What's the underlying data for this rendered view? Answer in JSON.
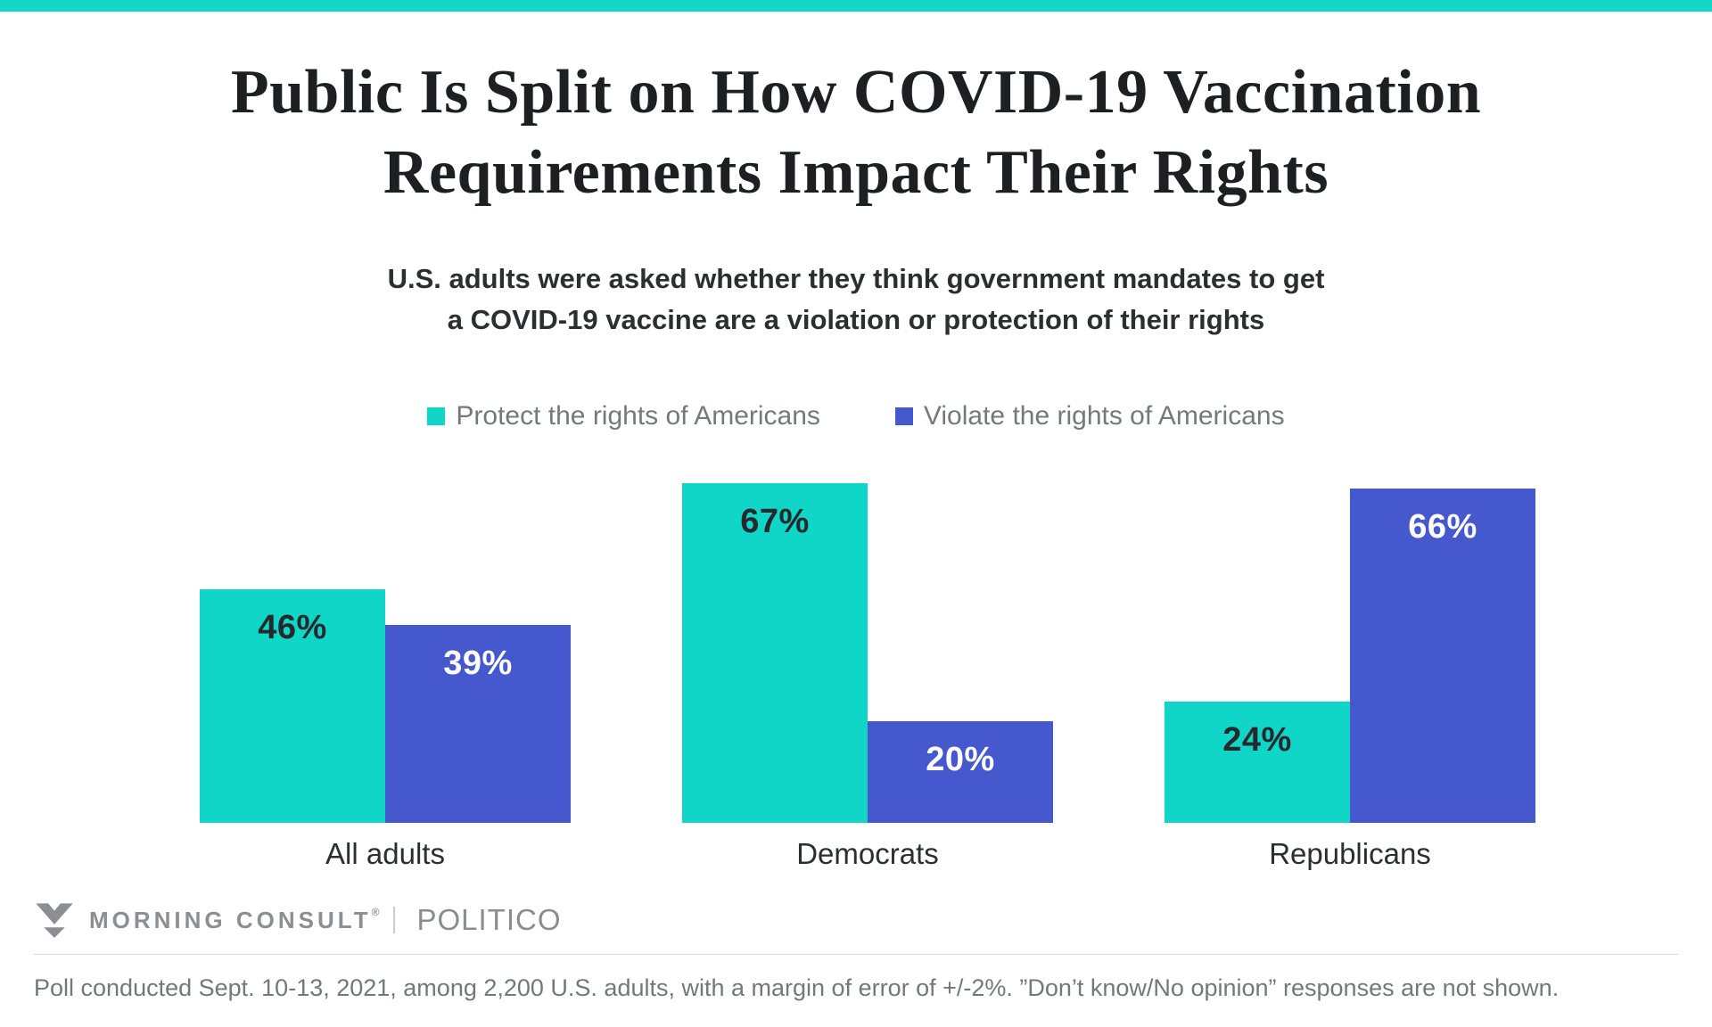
{
  "accent_color": "#12d6c6",
  "header": {
    "title_line1": "Public Is Split on How COVID-19 Vaccination",
    "title_line2": "Requirements Impact Their Rights",
    "subtitle_line1": "U.S. adults were asked whether they think government mandates to get",
    "subtitle_line2": "a COVID-19 vaccine are a violation or protection of their rights"
  },
  "legend": {
    "items": [
      {
        "label": "Protect the rights of Americans",
        "color": "#10d6c8"
      },
      {
        "label": "Violate the rights of Americans",
        "color": "#4658cd"
      }
    ]
  },
  "chart_data": {
    "type": "bar",
    "title": "Public Is Split on How COVID-19 Vaccination Requirements Impact Their Rights",
    "subtitle": "U.S. adults were asked whether they think government mandates to get a COVID-19 vaccine are a violation or protection of their rights",
    "categories": [
      "All adults",
      "Democrats",
      "Republicans"
    ],
    "series": [
      {
        "name": "Protect the rights of Americans",
        "color": "#10d6c8",
        "label_color": "#26282b",
        "values": [
          46,
          67,
          24
        ]
      },
      {
        "name": "Violate the rights of Americans",
        "color": "#4658cd",
        "label_color": "#ffffff",
        "values": [
          39,
          20,
          66
        ]
      }
    ],
    "value_suffix": "%",
    "xlabel": "",
    "ylabel": "",
    "ylim": [
      0,
      70
    ],
    "grid": false,
    "axes_shown": false,
    "legend_position": "top"
  },
  "footer": {
    "brand": "MORNING CONSULT",
    "registered": "®",
    "partner": "POLITICO",
    "note": "Poll conducted Sept. 10-13, 2021, among 2,200 U.S. adults, with a margin of error of +/-2%. ”Don’t know/No opinion” responses are not shown."
  }
}
